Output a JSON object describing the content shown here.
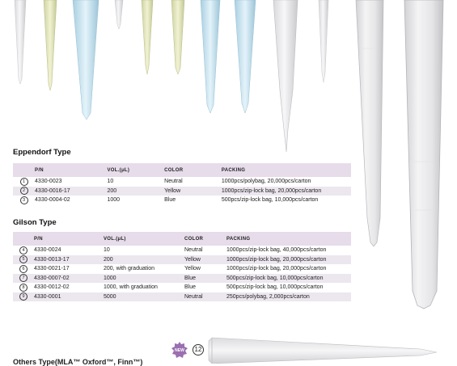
{
  "sections": {
    "eppendorf": {
      "title": "Eppendorf Type",
      "headers": {
        "pn": "P/N",
        "vol": "VOL.(μL)",
        "color": "COLOR",
        "packing": "PACKING"
      },
      "rows": [
        {
          "idx": "1",
          "pn": "4330-0023",
          "vol": "10",
          "color": "Neutral",
          "packing": "1000pcs/polybag, 20,000pcs/carton"
        },
        {
          "idx": "2",
          "pn": "4330-0016-17",
          "vol": "200",
          "color": "Yellow",
          "packing": "1000pcs/zip-lock bag, 20,000pcs/carton"
        },
        {
          "idx": "3",
          "pn": "4330-0004-02",
          "vol": "1000",
          "color": "Blue",
          "packing": "500pcs/zip-lock bag, 10,000pcs/carton"
        }
      ]
    },
    "gilson": {
      "title": "Gilson Type",
      "headers": {
        "pn": "P/N",
        "vol": "VOL.(μL)",
        "color": "COLOR",
        "packing": "PACKING"
      },
      "rows": [
        {
          "idx": "4",
          "pn": "4330-0024",
          "vol": "10",
          "color": "Neutral",
          "packing": "1000pcs/zip-lock bag, 40,000pcs/carton"
        },
        {
          "idx": "5",
          "pn": "4330-0013-17",
          "vol": "200",
          "color": "Yellow",
          "packing": "1000pcs/zip-lock bag, 20,000pcs/carton"
        },
        {
          "idx": "6",
          "pn": "4330-0021-17",
          "vol": "200, with graduation",
          "color": "Yellow",
          "packing": "1000pcs/zip-lock bag, 20,000pcs/carton"
        },
        {
          "idx": "7",
          "pn": "4330-0007-02",
          "vol": "1000",
          "color": "Blue",
          "packing": "500pcs/zip-lock bag, 10,000pcs/carton"
        },
        {
          "idx": "8",
          "pn": "4330-0012-02",
          "vol": "1000, with graduation",
          "color": "Blue",
          "packing": "500pcs/zip-lock bag, 10,000pcs/carton"
        },
        {
          "idx": "9",
          "pn": "4330-0001",
          "vol": "5000",
          "color": "Neutral",
          "packing": "250pcs/polybag, 2,000pcs/carton"
        }
      ]
    },
    "others": {
      "title": "Others Type(MLA™ Oxford™, Finn™)",
      "badge_new": "NEW",
      "badge_num": "12"
    }
  },
  "colors": {
    "header_bg": "#e6dcea",
    "row_alt_bg": "#ece6ef",
    "new_badge": "#9b6fb0"
  },
  "icons": [
    "pipette-tip-image"
  ]
}
